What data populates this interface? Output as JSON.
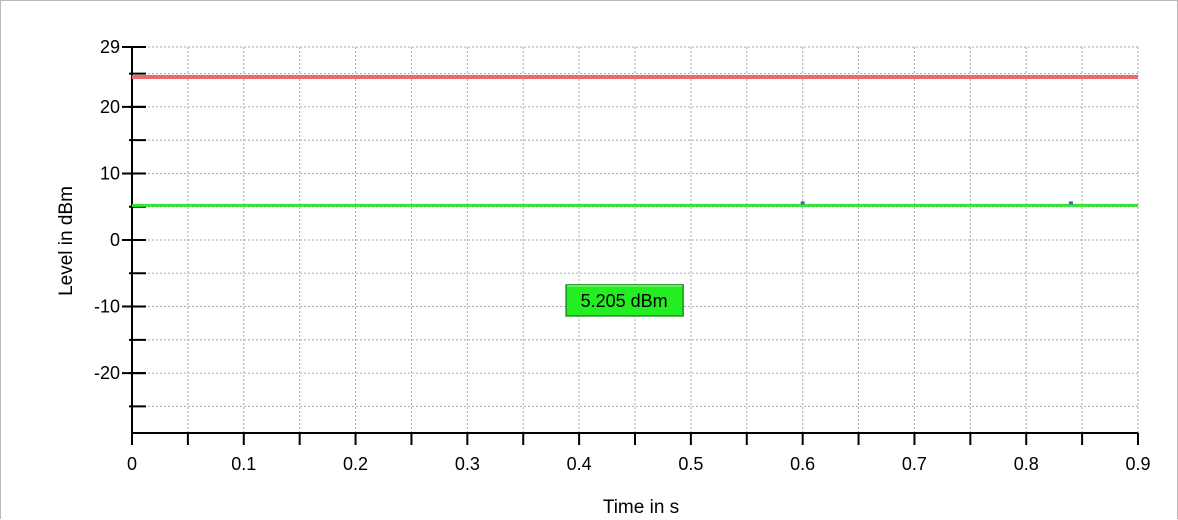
{
  "chart_data": {
    "type": "line",
    "xlabel": "Time in s",
    "ylabel": "Level in dBm",
    "xlim": [
      0,
      0.9
    ],
    "ylim": [
      -29,
      29
    ],
    "x_ticks": [
      {
        "value": 0,
        "label": "0"
      },
      {
        "value": 0.1,
        "label": "0.1"
      },
      {
        "value": 0.2,
        "label": "0.2"
      },
      {
        "value": 0.3,
        "label": "0.3"
      },
      {
        "value": 0.4,
        "label": "0.4"
      },
      {
        "value": 0.5,
        "label": "0.5"
      },
      {
        "value": 0.6,
        "label": "0.6"
      },
      {
        "value": 0.7,
        "label": "0.7"
      },
      {
        "value": 0.8,
        "label": "0.8"
      },
      {
        "value": 0.9,
        "label": "0.9"
      }
    ],
    "y_ticks": [
      {
        "value": 29,
        "label": "29"
      },
      {
        "value": 20,
        "label": "20"
      },
      {
        "value": 10,
        "label": "10"
      },
      {
        "value": 0,
        "label": "0"
      },
      {
        "value": -10,
        "label": "-10"
      },
      {
        "value": -20,
        "label": "-20"
      }
    ],
    "grid": true,
    "series": [
      {
        "color": "#ec6a6a",
        "points": [
          {
            "x": 0,
            "y": 24.5
          },
          {
            "x": 0.9,
            "y": 24.5
          }
        ]
      },
      {
        "color": "#33e633",
        "points": [
          {
            "x": 0,
            "y": 5.205
          },
          {
            "x": 0.9,
            "y": 5.205
          }
        ]
      }
    ],
    "markers": [
      {
        "x": 0.6,
        "y": 5.5,
        "color": "#4a5cc8"
      },
      {
        "x": 0.84,
        "y": 5.5,
        "color": "#4a5cc8"
      }
    ],
    "readout": {
      "text": "5.205 dBm",
      "color": "#22ee22",
      "x": 0.4,
      "y": -9
    }
  }
}
